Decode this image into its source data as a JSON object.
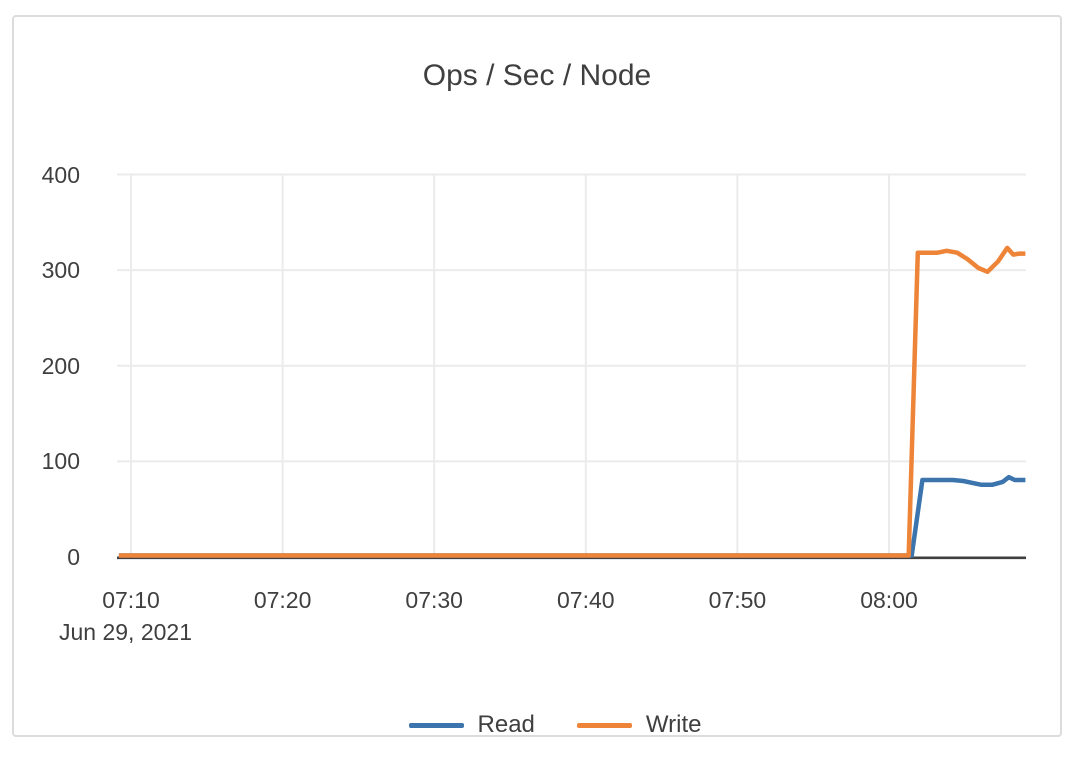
{
  "chart_data": {
    "type": "line",
    "title": "Ops / Sec / Node",
    "x_axis": {
      "tick_labels": [
        "07:10",
        "07:20",
        "07:30",
        "07:40",
        "07:50",
        "08:00"
      ],
      "tick_minutes": [
        10,
        20,
        30,
        40,
        50,
        60
      ],
      "date_label": "Jun 29, 2021",
      "range_minutes": [
        9.2,
        69.0
      ],
      "unit": "minutes after 07:00 on Jun 29, 2021"
    },
    "y_axis": {
      "tick_labels": [
        "0",
        "100",
        "200",
        "300",
        "400"
      ],
      "tick_values": [
        0,
        100,
        200,
        300,
        400
      ],
      "range": [
        0,
        400
      ],
      "grid": true
    },
    "legend_position": "bottom-center",
    "series": [
      {
        "name": "Read",
        "color": "#3c74ad",
        "points": [
          [
            9.2,
            0
          ],
          [
            20,
            0
          ],
          [
            30,
            0
          ],
          [
            40,
            0
          ],
          [
            50,
            0
          ],
          [
            60,
            0
          ],
          [
            61.5,
            0
          ],
          [
            62.2,
            79
          ],
          [
            62.8,
            79
          ],
          [
            63.5,
            79
          ],
          [
            64.2,
            79
          ],
          [
            64.9,
            78
          ],
          [
            65.5,
            76
          ],
          [
            66.1,
            74
          ],
          [
            66.8,
            74
          ],
          [
            67.5,
            77
          ],
          [
            67.9,
            82
          ],
          [
            68.3,
            79
          ],
          [
            68.7,
            79
          ],
          [
            69.0,
            79
          ]
        ]
      },
      {
        "name": "Write",
        "color": "#ee8438",
        "points": [
          [
            9.2,
            0
          ],
          [
            20,
            0
          ],
          [
            30,
            0
          ],
          [
            40,
            0
          ],
          [
            50,
            0
          ],
          [
            60,
            0
          ],
          [
            61.3,
            0
          ],
          [
            61.9,
            317
          ],
          [
            62.5,
            317
          ],
          [
            63.2,
            317
          ],
          [
            63.8,
            319
          ],
          [
            64.5,
            317
          ],
          [
            65.2,
            310
          ],
          [
            65.9,
            301
          ],
          [
            66.5,
            297
          ],
          [
            67.2,
            308
          ],
          [
            67.8,
            322
          ],
          [
            68.2,
            315
          ],
          [
            68.6,
            316
          ],
          [
            69.0,
            316
          ]
        ]
      }
    ],
    "colors": {
      "grid": "#ebebeb",
      "axis": "#404040",
      "text": "#3f3f3f",
      "card_border": "#dcdcdc",
      "background": "#ffffff"
    }
  }
}
